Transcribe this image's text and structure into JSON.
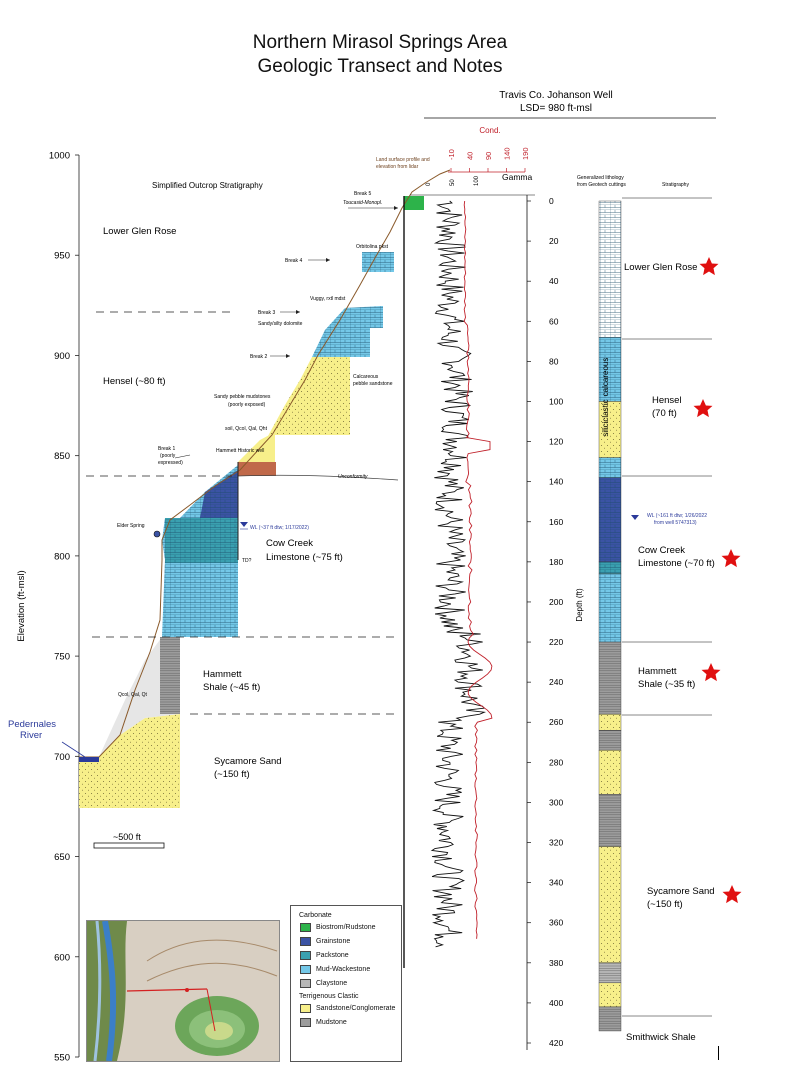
{
  "title": {
    "line1": "Northern Mirasol Springs Area",
    "line2": "Geologic Transect and Notes"
  },
  "well": {
    "name": "Travis Co. Johanson Well",
    "lsd": "LSD= 980 ft-msl"
  },
  "elevation_axis": {
    "label": "Elevation (ft-msl)",
    "ticks": [
      1000,
      950,
      900,
      850,
      800,
      750,
      700,
      650,
      600,
      550
    ]
  },
  "depth_axis": {
    "label": "Depth (ft)",
    "ticks": [
      0,
      20,
      40,
      60,
      80,
      100,
      120,
      140,
      160,
      180,
      200,
      220,
      240,
      260,
      280,
      300,
      320,
      340,
      360,
      380,
      400,
      420
    ]
  },
  "cond_axis": {
    "label": "Cond.",
    "ticks": [
      -10,
      40,
      90,
      140,
      190
    ]
  },
  "gamma_axis": {
    "label": "Gamma",
    "ticks": [
      0,
      50,
      100
    ]
  },
  "outcrop": {
    "heading": "Simplified Outcrop Stratigraphy",
    "units": [
      {
        "name": "Lower Glen Rose",
        "line2": ""
      },
      {
        "name": "Hensel (~80 ft)",
        "line2": ""
      },
      {
        "name": "Cow Creek",
        "line2": "Limestone (~75 ft)"
      },
      {
        "name": "Hammett",
        "line2": "Shale (~45 ft)"
      },
      {
        "name": "Sycamore Sand",
        "line2": "(~150 ft)"
      }
    ],
    "profile_note_1": "Land surface profile and",
    "profile_note_2": "elevation from lidar",
    "breaks": {
      "b5": "Break 5",
      "b5_sub": "Toucasid-Monopl.",
      "b4": "Break 4",
      "orbitolina": "Orbitolina pkst",
      "b3": "Break 3",
      "vuggy": "Vuggy, rxtl mdst",
      "dolomite": "Sandy/silty dolomite",
      "b2": "Break 2",
      "calc1": "Calcareous",
      "calc2": "pebble sandstone",
      "spm1": "Sandy pebble mudstones",
      "spm2": "(poorly exposed)",
      "soil": "soil, Qcol, Qal, Qht",
      "b1a": "Break 1",
      "b1b": "(poorly",
      "b1c": "expressed)",
      "hammett_well": "Hammett Historic well",
      "unconformity": "Unconformity"
    },
    "elder_spring": "Elder Spring",
    "wl_outcrop": "WL (~37 ft dtw; 1/17/2022)",
    "td": "TD?",
    "qcol": "Qcol, Qal, Qt",
    "river1": "Pedernales",
    "river2": "River",
    "scale_bar": "~500 ft"
  },
  "lithology": {
    "heading1": "Generalized lithology",
    "heading2": "from Geotech cuttings",
    "strat_heading": "Stratigraphy",
    "calcareous": "calcareous",
    "siliciclastic": "siliciclastic",
    "units": [
      {
        "name": "Lower Glen Rose",
        "line2": ""
      },
      {
        "name": "Hensel",
        "line2": "(70 ft)"
      },
      {
        "name": "Cow Creek",
        "line2": "Limestone (~70 ft)"
      },
      {
        "name": "Hammett",
        "line2": "Shale (~35 ft)"
      },
      {
        "name": "Sycamore Sand",
        "line2": "(~150 ft)"
      },
      {
        "name": "Smithwick Shale",
        "line2": ""
      }
    ],
    "wl1": "WL (~161 ft dtw; 1/26/2022",
    "wl2": "from well 5747313)"
  },
  "legend": {
    "carbonate": "Carbonate",
    "terrigenous": "Terrigenous Clastic",
    "items": [
      {
        "label": "Biostrom/Rudstone",
        "color": "#2db34a"
      },
      {
        "label": "Grainstone",
        "color": "#3b53a4"
      },
      {
        "label": "Packstone",
        "color": "#3aa0b0"
      },
      {
        "label": "Mud-Wackestone",
        "color": "#74c8e8"
      },
      {
        "label": "Claystone",
        "color": "#b7b7b7"
      },
      {
        "label": "Sandstone/Conglomerate",
        "color": "#f7ef8a"
      },
      {
        "label": "Mudstone",
        "color": "#9c9c9c"
      }
    ]
  },
  "colors": {
    "gamma": "#111111",
    "conductivity": "#c0202a",
    "profile": "#8a5a2b",
    "water": "#2b3a9a",
    "star": "#e01010"
  }
}
